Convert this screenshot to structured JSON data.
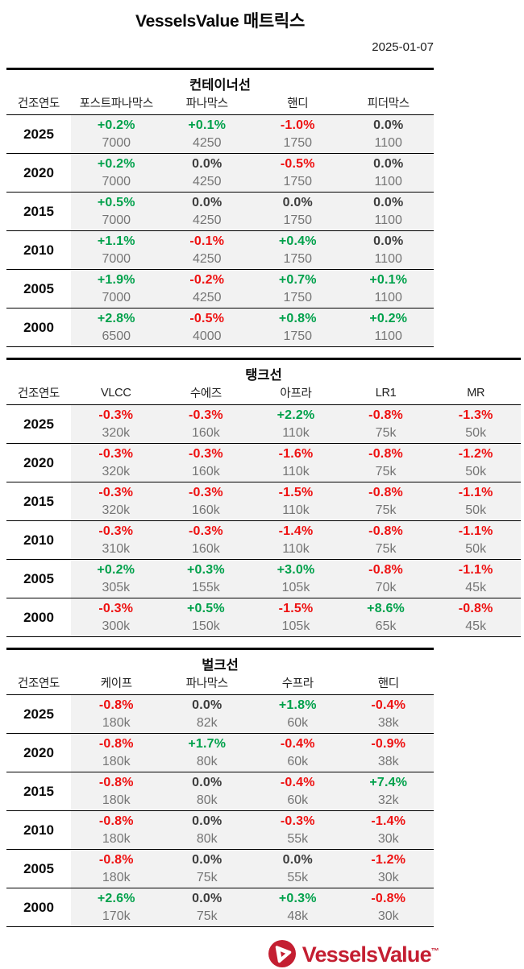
{
  "header": {
    "title": "VesselsValue 매트릭스",
    "date": "2025-01-07"
  },
  "tables": [
    {
      "id": "container",
      "title": "컨테이너선",
      "year_col_label": "건조연도",
      "columns": [
        "포스트파나막스",
        "파나막스",
        "핸디",
        "피더막스"
      ],
      "rows": [
        {
          "year": "2025",
          "cells": [
            {
              "pct": "+0.2%",
              "trend": "up",
              "value": "7000"
            },
            {
              "pct": "+0.1%",
              "trend": "up",
              "value": "4250"
            },
            {
              "pct": "-1.0%",
              "trend": "down",
              "value": "1750"
            },
            {
              "pct": "0.0%",
              "trend": "flat",
              "value": "1100"
            }
          ]
        },
        {
          "year": "2020",
          "cells": [
            {
              "pct": "+0.2%",
              "trend": "up",
              "value": "7000"
            },
            {
              "pct": "0.0%",
              "trend": "flat",
              "value": "4250"
            },
            {
              "pct": "-0.5%",
              "trend": "down",
              "value": "1750"
            },
            {
              "pct": "0.0%",
              "trend": "flat",
              "value": "1100"
            }
          ]
        },
        {
          "year": "2015",
          "cells": [
            {
              "pct": "+0.5%",
              "trend": "up",
              "value": "7000"
            },
            {
              "pct": "0.0%",
              "trend": "flat",
              "value": "4250"
            },
            {
              "pct": "0.0%",
              "trend": "flat",
              "value": "1750"
            },
            {
              "pct": "0.0%",
              "trend": "flat",
              "value": "1100"
            }
          ]
        },
        {
          "year": "2010",
          "cells": [
            {
              "pct": "+1.1%",
              "trend": "up",
              "value": "7000"
            },
            {
              "pct": "-0.1%",
              "trend": "down",
              "value": "4250"
            },
            {
              "pct": "+0.4%",
              "trend": "up",
              "value": "1750"
            },
            {
              "pct": "0.0%",
              "trend": "flat",
              "value": "1100"
            }
          ]
        },
        {
          "year": "2005",
          "cells": [
            {
              "pct": "+1.9%",
              "trend": "up",
              "value": "7000"
            },
            {
              "pct": "-0.2%",
              "trend": "down",
              "value": "4250"
            },
            {
              "pct": "+0.7%",
              "trend": "up",
              "value": "1750"
            },
            {
              "pct": "+0.1%",
              "trend": "up",
              "value": "1100"
            }
          ]
        },
        {
          "year": "2000",
          "cells": [
            {
              "pct": "+2.8%",
              "trend": "up",
              "value": "6500"
            },
            {
              "pct": "-0.5%",
              "trend": "down",
              "value": "4000"
            },
            {
              "pct": "+0.8%",
              "trend": "up",
              "value": "1750"
            },
            {
              "pct": "+0.2%",
              "trend": "up",
              "value": "1100"
            }
          ]
        }
      ]
    },
    {
      "id": "tanker",
      "title": "탱크선",
      "year_col_label": "건조연도",
      "columns": [
        "VLCC",
        "수에즈",
        "아프라",
        "LR1",
        "MR"
      ],
      "rows": [
        {
          "year": "2025",
          "cells": [
            {
              "pct": "-0.3%",
              "trend": "down",
              "value": "320k"
            },
            {
              "pct": "-0.3%",
              "trend": "down",
              "value": "160k"
            },
            {
              "pct": "+2.2%",
              "trend": "up",
              "value": "110k"
            },
            {
              "pct": "-0.8%",
              "trend": "down",
              "value": "75k"
            },
            {
              "pct": "-1.3%",
              "trend": "down",
              "value": "50k"
            }
          ]
        },
        {
          "year": "2020",
          "cells": [
            {
              "pct": "-0.3%",
              "trend": "down",
              "value": "320k"
            },
            {
              "pct": "-0.3%",
              "trend": "down",
              "value": "160k"
            },
            {
              "pct": "-1.6%",
              "trend": "down",
              "value": "110k"
            },
            {
              "pct": "-0.8%",
              "trend": "down",
              "value": "75k"
            },
            {
              "pct": "-1.2%",
              "trend": "down",
              "value": "50k"
            }
          ]
        },
        {
          "year": "2015",
          "cells": [
            {
              "pct": "-0.3%",
              "trend": "down",
              "value": "320k"
            },
            {
              "pct": "-0.3%",
              "trend": "down",
              "value": "160k"
            },
            {
              "pct": "-1.5%",
              "trend": "down",
              "value": "110k"
            },
            {
              "pct": "-0.8%",
              "trend": "down",
              "value": "75k"
            },
            {
              "pct": "-1.1%",
              "trend": "down",
              "value": "50k"
            }
          ]
        },
        {
          "year": "2010",
          "cells": [
            {
              "pct": "-0.3%",
              "trend": "down",
              "value": "310k"
            },
            {
              "pct": "-0.3%",
              "trend": "down",
              "value": "160k"
            },
            {
              "pct": "-1.4%",
              "trend": "down",
              "value": "110k"
            },
            {
              "pct": "-0.8%",
              "trend": "down",
              "value": "75k"
            },
            {
              "pct": "-1.1%",
              "trend": "down",
              "value": "50k"
            }
          ]
        },
        {
          "year": "2005",
          "cells": [
            {
              "pct": "+0.2%",
              "trend": "up",
              "value": "305k"
            },
            {
              "pct": "+0.3%",
              "trend": "up",
              "value": "155k"
            },
            {
              "pct": "+3.0%",
              "trend": "up",
              "value": "105k"
            },
            {
              "pct": "-0.8%",
              "trend": "down",
              "value": "70k"
            },
            {
              "pct": "-1.1%",
              "trend": "down",
              "value": "45k"
            }
          ]
        },
        {
          "year": "2000",
          "cells": [
            {
              "pct": "-0.3%",
              "trend": "down",
              "value": "300k"
            },
            {
              "pct": "+0.5%",
              "trend": "up",
              "value": "150k"
            },
            {
              "pct": "-1.5%",
              "trend": "down",
              "value": "105k"
            },
            {
              "pct": "+8.6%",
              "trend": "up",
              "value": "65k"
            },
            {
              "pct": "-0.8%",
              "trend": "down",
              "value": "45k"
            }
          ]
        }
      ]
    },
    {
      "id": "bulker",
      "title": "벌크선",
      "year_col_label": "건조연도",
      "columns": [
        "케이프",
        "파나막스",
        "수프라",
        "핸디"
      ],
      "rows": [
        {
          "year": "2025",
          "cells": [
            {
              "pct": "-0.8%",
              "trend": "down",
              "value": "180k"
            },
            {
              "pct": "0.0%",
              "trend": "flat",
              "value": "82k"
            },
            {
              "pct": "+1.8%",
              "trend": "up",
              "value": "60k"
            },
            {
              "pct": "-0.4%",
              "trend": "down",
              "value": "38k"
            }
          ]
        },
        {
          "year": "2020",
          "cells": [
            {
              "pct": "-0.8%",
              "trend": "down",
              "value": "180k"
            },
            {
              "pct": "+1.7%",
              "trend": "up",
              "value": "80k"
            },
            {
              "pct": "-0.4%",
              "trend": "down",
              "value": "60k"
            },
            {
              "pct": "-0.9%",
              "trend": "down",
              "value": "38k"
            }
          ]
        },
        {
          "year": "2015",
          "cells": [
            {
              "pct": "-0.8%",
              "trend": "down",
              "value": "180k"
            },
            {
              "pct": "0.0%",
              "trend": "flat",
              "value": "80k"
            },
            {
              "pct": "-0.4%",
              "trend": "down",
              "value": "60k"
            },
            {
              "pct": "+7.4%",
              "trend": "up",
              "value": "32k"
            }
          ]
        },
        {
          "year": "2010",
          "cells": [
            {
              "pct": "-0.8%",
              "trend": "down",
              "value": "180k"
            },
            {
              "pct": "0.0%",
              "trend": "flat",
              "value": "80k"
            },
            {
              "pct": "-0.3%",
              "trend": "down",
              "value": "55k"
            },
            {
              "pct": "-1.4%",
              "trend": "down",
              "value": "30k"
            }
          ]
        },
        {
          "year": "2005",
          "cells": [
            {
              "pct": "-0.8%",
              "trend": "down",
              "value": "180k"
            },
            {
              "pct": "0.0%",
              "trend": "flat",
              "value": "75k"
            },
            {
              "pct": "0.0%",
              "trend": "flat",
              "value": "55k"
            },
            {
              "pct": "-1.2%",
              "trend": "down",
              "value": "30k"
            }
          ]
        },
        {
          "year": "2000",
          "cells": [
            {
              "pct": "+2.6%",
              "trend": "up",
              "value": "170k"
            },
            {
              "pct": "0.0%",
              "trend": "flat",
              "value": "75k"
            },
            {
              "pct": "+0.3%",
              "trend": "up",
              "value": "48k"
            },
            {
              "pct": "-0.8%",
              "trend": "down",
              "value": "30k"
            }
          ]
        }
      ]
    }
  ],
  "footer": {
    "logo_text": "VesselsValue",
    "trademark": "™"
  },
  "colors": {
    "positive_green": "#00a14b",
    "negative_red": "#ee1111",
    "neutral_dark": "#3d3d3d",
    "value_gray": "#757575",
    "row_background": "#f2f2f2",
    "logo_red": "#c41e31"
  }
}
